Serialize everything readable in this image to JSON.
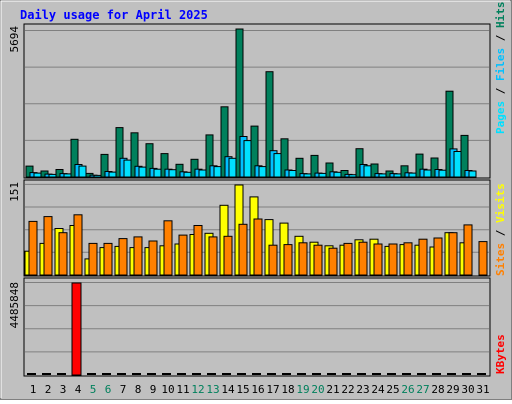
{
  "title": "Daily usage for April 2025",
  "colors": {
    "hits": "#00805c",
    "files": "#00c0ff",
    "pages": "#00e0ff",
    "visits": "#ffff00",
    "sites": "#ff8000",
    "kbytes": "#ff0000",
    "title": "#0000ff",
    "panel": "#c0c0c0",
    "frame": "#c0c0c0",
    "grid": "#808080",
    "weekend_label": "#00805c"
  },
  "chart_data": [
    {
      "type": "bar",
      "panel": "hits-files-pages",
      "title": "Daily usage for April 2025",
      "ytick_label": "5694",
      "ylim": [
        0,
        5694
      ],
      "grid": true,
      "legend": [
        "Pages",
        "Files",
        "Hits"
      ],
      "legend_separator": " / ",
      "categories": [
        "1",
        "2",
        "3",
        "4",
        "5",
        "6",
        "7",
        "8",
        "9",
        "10",
        "11",
        "12",
        "13",
        "14",
        "15",
        "16",
        "17",
        "18",
        "19",
        "20",
        "21",
        "22",
        "23",
        "24",
        "25",
        "26",
        "27",
        "28",
        "29",
        "30",
        "31"
      ],
      "weekend_days": [
        "5",
        "6",
        "12",
        "13",
        "19",
        "20",
        "26",
        "27"
      ],
      "series": [
        {
          "name": "Hits",
          "color": "#00805c",
          "values": [
            420,
            230,
            290,
            1450,
            140,
            870,
            1900,
            1700,
            1280,
            900,
            490,
            680,
            1620,
            2700,
            5694,
            1960,
            4050,
            1470,
            720,
            830,
            540,
            250,
            1090,
            500,
            230,
            430,
            880,
            730,
            3300,
            1600,
            0
          ]
        },
        {
          "name": "Files",
          "color": "#00c0ff",
          "values": [
            170,
            110,
            130,
            480,
            70,
            210,
            720,
            410,
            330,
            300,
            200,
            300,
            430,
            780,
            1560,
            430,
            1010,
            270,
            130,
            150,
            200,
            100,
            480,
            130,
            130,
            160,
            300,
            290,
            1080,
            250,
            0
          ]
        },
        {
          "name": "Pages",
          "color": "#00e0ff",
          "values": [
            150,
            100,
            120,
            420,
            60,
            190,
            650,
            380,
            300,
            280,
            180,
            270,
            400,
            720,
            1400,
            400,
            900,
            250,
            120,
            140,
            180,
            90,
            430,
            120,
            120,
            150,
            270,
            260,
            980,
            230,
            0
          ]
        }
      ]
    },
    {
      "type": "bar",
      "panel": "visits-sites",
      "ytick_label": "151",
      "ylim": [
        0,
        151
      ],
      "grid": true,
      "legend": [
        "Sites",
        "Visits"
      ],
      "legend_separator": " / ",
      "categories": [
        "1",
        "2",
        "3",
        "4",
        "5",
        "6",
        "7",
        "8",
        "9",
        "10",
        "11",
        "12",
        "13",
        "14",
        "15",
        "16",
        "17",
        "18",
        "19",
        "20",
        "21",
        "22",
        "23",
        "24",
        "25",
        "26",
        "27",
        "28",
        "29",
        "30",
        "31"
      ],
      "series": [
        {
          "name": "Visits",
          "color": "#ffff00",
          "values": [
            40,
            53,
            78,
            83,
            27,
            46,
            48,
            46,
            46,
            49,
            52,
            68,
            70,
            117,
            151,
            131,
            93,
            87,
            65,
            55,
            49,
            50,
            59,
            60,
            48,
            51,
            50,
            47,
            71,
            54,
            0
          ]
        },
        {
          "name": "Sites",
          "color": "#ff8000",
          "values": [
            90,
            98,
            71,
            101,
            53,
            53,
            61,
            64,
            57,
            91,
            67,
            83,
            64,
            65,
            85,
            94,
            50,
            51,
            54,
            50,
            45,
            53,
            55,
            52,
            52,
            54,
            60,
            62,
            71,
            84,
            56
          ]
        }
      ]
    },
    {
      "type": "bar",
      "panel": "kbytes",
      "ytick_label": "4485848",
      "ylim": [
        0,
        4485848
      ],
      "grid": true,
      "legend": [
        "KBytes"
      ],
      "categories": [
        "1",
        "2",
        "3",
        "4",
        "5",
        "6",
        "7",
        "8",
        "9",
        "10",
        "11",
        "12",
        "13",
        "14",
        "15",
        "16",
        "17",
        "18",
        "19",
        "20",
        "21",
        "22",
        "23",
        "24",
        "25",
        "26",
        "27",
        "28",
        "29",
        "30",
        "31"
      ],
      "series": [
        {
          "name": "KBytes",
          "color": "#ff0000",
          "values": [
            50000,
            50000,
            50000,
            4485848,
            50000,
            50000,
            50000,
            50000,
            50000,
            50000,
            50000,
            50000,
            50000,
            50000,
            50000,
            50000,
            50000,
            50000,
            50000,
            50000,
            50000,
            50000,
            50000,
            50000,
            50000,
            50000,
            50000,
            50000,
            50000,
            50000,
            50000
          ]
        }
      ]
    }
  ]
}
